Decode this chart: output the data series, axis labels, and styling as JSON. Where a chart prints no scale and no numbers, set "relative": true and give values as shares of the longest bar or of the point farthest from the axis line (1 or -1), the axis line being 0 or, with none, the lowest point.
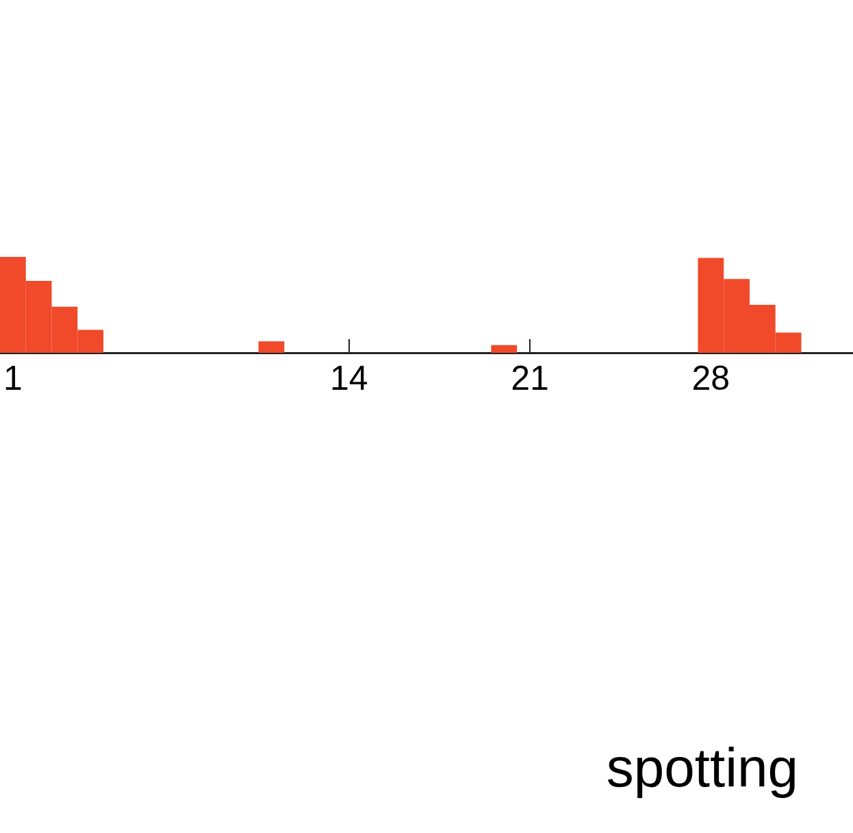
{
  "chart_data": {
    "type": "bar",
    "relative": true,
    "x": [
      1,
      2,
      3,
      4,
      11,
      20,
      28,
      29,
      30,
      31
    ],
    "values": [
      1,
      0.75,
      0.48,
      0.24,
      0.12,
      0.08,
      0.99,
      0.77,
      0.5,
      0.21
    ],
    "color": "#f04a2a",
    "xlim": [
      0.5,
      33.5
    ],
    "xticks": [
      1,
      14,
      21,
      28
    ],
    "grid": false,
    "annotations": [
      "spotting"
    ]
  }
}
